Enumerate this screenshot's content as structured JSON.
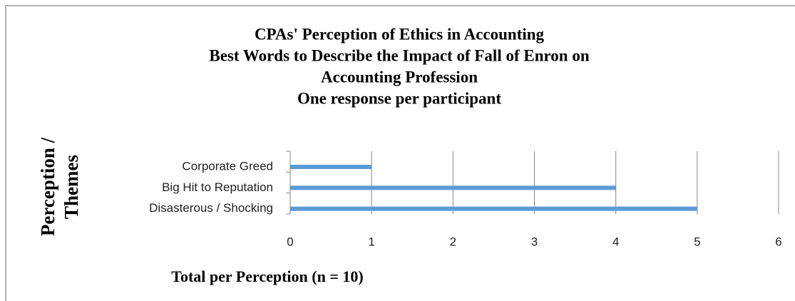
{
  "chart_data": {
    "type": "barh",
    "title": [
      "CPAs' Perception of Ethics in Accounting",
      "Best Words to Describe the Impact of Fall of Enron on",
      "Accounting Profession",
      "One response per participant"
    ],
    "ylabel": [
      "Perception /",
      "Themes"
    ],
    "xlabel": "Total per Perception (n = 10)",
    "categories": [
      "Corporate Greed",
      "Big Hit to Reputation",
      "Disasterous / Shocking"
    ],
    "values": [
      1,
      4,
      5
    ],
    "color": "#5b9bd5",
    "xlim": [
      0,
      6
    ],
    "xticks": [
      0,
      1,
      2,
      3,
      4,
      5,
      6
    ],
    "grid": true
  }
}
